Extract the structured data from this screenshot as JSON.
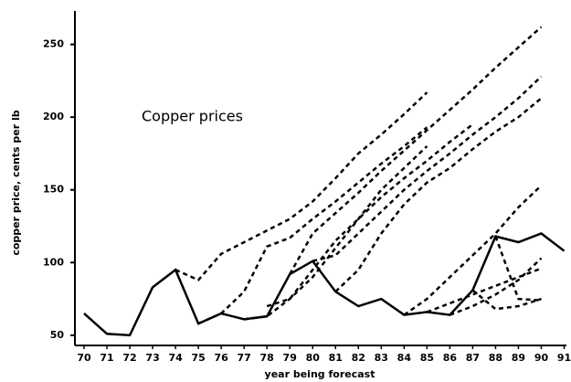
{
  "chart_data": {
    "type": "line",
    "annotation": "Copper prices",
    "y_label": "copper price, cents per lb",
    "x_label": "year being forecast",
    "x": [
      70,
      71,
      72,
      73,
      74,
      75,
      76,
      77,
      78,
      79,
      80,
      81,
      82,
      83,
      84,
      85,
      86,
      87,
      88,
      89,
      90,
      91
    ],
    "xlim": [
      69.6,
      91.1
    ],
    "xticks": [
      70,
      71,
      72,
      73,
      74,
      75,
      76,
      77,
      78,
      79,
      80,
      81,
      82,
      83,
      84,
      85,
      86,
      87,
      88,
      89,
      90,
      91
    ],
    "ylim": [
      43,
      273
    ],
    "yticks": [
      50,
      100,
      150,
      200,
      250
    ],
    "grid": false,
    "series": [
      {
        "color": "#000",
        "style": "solid",
        "values": [
          65,
          51,
          50,
          83,
          95,
          58,
          65,
          61,
          63,
          92,
          101,
          80,
          70,
          75,
          64,
          66,
          64,
          81,
          118,
          114,
          120,
          108
        ]
      },
      {
        "color": "#000",
        "style": "dashed",
        "values": [
          null,
          null,
          null,
          null,
          95,
          88,
          106,
          114,
          122,
          130,
          142,
          158,
          175,
          188,
          202,
          217,
          null,
          null,
          null,
          null,
          null,
          null
        ]
      },
      {
        "color": "#000",
        "style": "dashed",
        "values": [
          null,
          null,
          null,
          null,
          null,
          58,
          65,
          80,
          111,
          117,
          130,
          142,
          155,
          168,
          180,
          193,
          null,
          null,
          null,
          null,
          null,
          null
        ]
      },
      {
        "color": "#000",
        "style": "dashed",
        "values": [
          null,
          null,
          null,
          null,
          null,
          null,
          null,
          61,
          63,
          75,
          90,
          110,
          130,
          150,
          165,
          180,
          null,
          null,
          null,
          null,
          null,
          null
        ]
      },
      {
        "color": "#000",
        "style": "dashed",
        "values": [
          null,
          null,
          null,
          null,
          null,
          null,
          null,
          null,
          null,
          92,
          120,
          134,
          148,
          163,
          177,
          191,
          205,
          219,
          234,
          248,
          262,
          null
        ]
      },
      {
        "color": "#000",
        "style": "dashed",
        "values": [
          null,
          null,
          null,
          null,
          null,
          null,
          null,
          null,
          null,
          null,
          101,
          105,
          120,
          135,
          150,
          163,
          175,
          188,
          200,
          213,
          228,
          null
        ]
      },
      {
        "color": "#000",
        "style": "dashed",
        "values": [
          null,
          null,
          null,
          null,
          null,
          null,
          null,
          null,
          null,
          null,
          null,
          80,
          95,
          120,
          140,
          155,
          165,
          178,
          190,
          200,
          213,
          null
        ]
      },
      {
        "color": "#000",
        "style": "dashed",
        "values": [
          null,
          null,
          null,
          null,
          null,
          null,
          null,
          null,
          70,
          75,
          95,
          115,
          130,
          145,
          158,
          170,
          183,
          195,
          null,
          null,
          null,
          null
        ]
      },
      {
        "color": "#000",
        "style": "dashed",
        "values": [
          null,
          null,
          null,
          null,
          null,
          null,
          null,
          null,
          null,
          null,
          null,
          null,
          null,
          null,
          64,
          75,
          90,
          105,
          120,
          138,
          153,
          null
        ]
      },
      {
        "color": "#000",
        "style": "dashed",
        "values": [
          null,
          null,
          null,
          null,
          null,
          null,
          null,
          null,
          null,
          null,
          null,
          null,
          null,
          null,
          null,
          66,
          72,
          78,
          84,
          90,
          96,
          null
        ]
      },
      {
        "color": "#000",
        "style": "dashed",
        "values": [
          null,
          null,
          null,
          null,
          null,
          null,
          null,
          null,
          null,
          null,
          null,
          null,
          null,
          null,
          null,
          null,
          64,
          70,
          78,
          88,
          103,
          null
        ]
      },
      {
        "color": "#000",
        "style": "dashed",
        "values": [
          null,
          null,
          null,
          null,
          null,
          null,
          null,
          null,
          null,
          null,
          null,
          null,
          null,
          null,
          null,
          null,
          null,
          81,
          68,
          70,
          75,
          null
        ]
      },
      {
        "color": "#000",
        "style": "dashed",
        "values": [
          null,
          null,
          null,
          null,
          null,
          null,
          null,
          null,
          null,
          null,
          null,
          null,
          null,
          null,
          null,
          null,
          null,
          null,
          118,
          75,
          74,
          null
        ]
      }
    ]
  }
}
